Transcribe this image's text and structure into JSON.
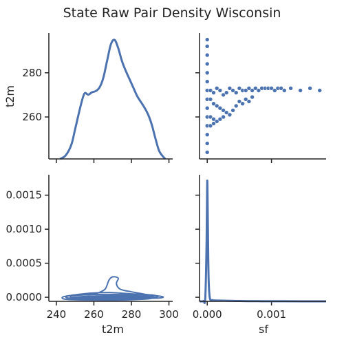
{
  "title": "State Raw Pair Density Wisconsin",
  "accent_color": "#4c72b0",
  "chart_data": [
    {
      "panel": "t2m-vs-t2m",
      "type": "line",
      "kind": "kde",
      "xlabel": "",
      "ylabel": "t2m",
      "xlim": [
        236,
        302
      ],
      "ylim": [
        241,
        298
      ],
      "y_ticks": [
        "260",
        "280"
      ],
      "x_ticks": [],
      "x": [
        242,
        245,
        248,
        250,
        253,
        255,
        257,
        259,
        261,
        263,
        265,
        267,
        269,
        271,
        273,
        275,
        277,
        279,
        281,
        283,
        285,
        287,
        289,
        291,
        293,
        295,
        298
      ],
      "values": [
        0.0,
        0.03,
        0.12,
        0.25,
        0.45,
        0.55,
        0.54,
        0.56,
        0.57,
        0.6,
        0.68,
        0.82,
        0.96,
        1.0,
        0.93,
        0.82,
        0.74,
        0.67,
        0.6,
        0.53,
        0.48,
        0.43,
        0.37,
        0.28,
        0.16,
        0.06,
        0.0
      ]
    },
    {
      "panel": "t2m-vs-sf",
      "type": "scatter",
      "xlabel": "",
      "ylabel": "",
      "xlim": [
        -0.00012,
        0.00185
      ],
      "ylim": [
        241,
        298
      ],
      "x_ticks": [],
      "y_ticks": [],
      "points": [
        [
          0,
          295
        ],
        [
          0,
          292
        ],
        [
          0,
          288
        ],
        [
          0,
          284
        ],
        [
          0,
          280
        ],
        [
          0,
          276
        ],
        [
          0,
          272
        ],
        [
          0,
          268
        ],
        [
          0,
          264
        ],
        [
          0,
          260
        ],
        [
          0,
          256
        ],
        [
          0,
          252
        ],
        [
          0,
          248
        ],
        [
          0,
          244
        ],
        [
          5e-05,
          272
        ],
        [
          0.0001,
          271
        ],
        [
          0.00015,
          273
        ],
        [
          0.0002,
          272
        ],
        [
          0.00025,
          270
        ],
        [
          0.0003,
          271
        ],
        [
          0.00035,
          273
        ],
        [
          0.0004,
          272
        ],
        [
          0.00045,
          271
        ],
        [
          0.0005,
          273
        ],
        [
          0.00055,
          272
        ],
        [
          0.0006,
          272
        ],
        [
          0.00065,
          273
        ],
        [
          0.0007,
          272
        ],
        [
          0.00075,
          273
        ],
        [
          0.0008,
          272
        ],
        [
          0.00085,
          273
        ],
        [
          0.0009,
          273
        ],
        [
          0.00095,
          273
        ],
        [
          0.001,
          273
        ],
        [
          0.00105,
          272
        ],
        [
          0.0011,
          273
        ],
        [
          0.00115,
          273
        ],
        [
          0.0012,
          272
        ],
        [
          0.0013,
          273
        ],
        [
          0.00145,
          272
        ],
        [
          0.0016,
          273
        ],
        [
          0.00175,
          272
        ],
        [
          5e-05,
          268
        ],
        [
          0.0001,
          266
        ],
        [
          0.00015,
          265
        ],
        [
          0.0002,
          264
        ],
        [
          0.00025,
          263
        ],
        [
          0.0003,
          262
        ],
        [
          0.00035,
          261
        ],
        [
          0.0004,
          263
        ],
        [
          0.00045,
          265
        ],
        [
          0.0005,
          267
        ],
        [
          0.00055,
          266
        ],
        [
          0.0006,
          268
        ],
        [
          0.00065,
          267
        ],
        [
          0.0007,
          269
        ],
        [
          5e-05,
          260
        ],
        [
          0.0001,
          259
        ],
        [
          0.00015,
          258
        ],
        [
          0.0002,
          259
        ],
        [
          0.00025,
          260
        ],
        [
          5e-05,
          256
        ],
        [
          0.0001,
          257
        ]
      ]
    },
    {
      "panel": "sf-vs-t2m",
      "type": "line",
      "kind": "kde-contour",
      "xlabel": "t2m",
      "ylabel": "",
      "xlim": [
        236,
        302
      ],
      "ylim": [
        -6e-05,
        0.0018
      ],
      "x_ticks": [
        "240",
        "260",
        "280",
        "300"
      ],
      "y_ticks": [
        "0.0000",
        "0.0005",
        "0.0010",
        "0.0015"
      ],
      "contours": [
        [
          [
            262,
            6e-05
          ],
          [
            266,
            0.00012
          ],
          [
            268,
            0.00025
          ],
          [
            270,
            0.0003
          ],
          [
            273,
            0.00028
          ],
          [
            272,
            0.0002
          ],
          [
            274,
            0.00012
          ],
          [
            280,
            8e-05
          ],
          [
            286,
            5e-05
          ],
          [
            291,
            2e-05
          ],
          [
            290,
            -2e-05
          ],
          [
            275,
            -4e-05
          ],
          [
            260,
            -4e-05
          ],
          [
            245,
            -3e-05
          ],
          [
            244,
            1e-05
          ],
          [
            252,
            4e-05
          ],
          [
            262,
            6e-05
          ]
        ],
        [
          [
            248,
            3e-05
          ],
          [
            258,
            6e-05
          ],
          [
            268,
            7e-05
          ],
          [
            280,
            5e-05
          ],
          [
            292,
            3e-05
          ],
          [
            293,
            0.0
          ],
          [
            280,
            -3e-05
          ],
          [
            264,
            -3e-05
          ],
          [
            249,
            -2e-05
          ],
          [
            248,
            3e-05
          ]
        ],
        [
          [
            246,
            2e-05
          ],
          [
            260,
            4e-05
          ],
          [
            275,
            4e-05
          ],
          [
            294,
            2e-05
          ],
          [
            295,
            -1e-05
          ],
          [
            275,
            -2e-05
          ],
          [
            258,
            -2e-05
          ],
          [
            246,
            -1e-05
          ],
          [
            246,
            2e-05
          ]
        ],
        [
          [
            248,
            0.0
          ],
          [
            262,
            2e-05
          ],
          [
            280,
            2e-05
          ],
          [
            293,
            0.0
          ],
          [
            280,
            -1e-05
          ],
          [
            262,
            -1e-05
          ],
          [
            248,
            0.0
          ]
        ],
        [
          [
            252,
            0.0
          ],
          [
            270,
            1e-05
          ],
          [
            288,
            0.0
          ],
          [
            270,
            -1e-05
          ],
          [
            252,
            0.0
          ]
        ],
        [
          [
            258,
            0.0
          ],
          [
            272,
            5e-06
          ],
          [
            284,
            0.0
          ],
          [
            272,
            -5e-06
          ],
          [
            258,
            0.0
          ]
        ]
      ]
    },
    {
      "panel": "sf-vs-sf",
      "type": "line",
      "kind": "kde",
      "xlabel": "sf",
      "ylabel": "",
      "xlim": [
        -0.00012,
        0.00185
      ],
      "ylim": [
        0,
        1.05
      ],
      "x_ticks": [
        "0.000",
        "0.001"
      ],
      "y_ticks": [],
      "x": [
        -0.00012,
        -6e-05,
        -3e-05,
        -1e-05,
        0.0,
        1e-05,
        2e-05,
        4e-05,
        8e-05,
        0.00015,
        0.0003,
        0.0005,
        0.0008,
        0.0012,
        0.00185
      ],
      "values": [
        0.0,
        0.002,
        0.03,
        0.5,
        1.0,
        0.65,
        0.22,
        0.03,
        0.01,
        0.007,
        0.005,
        0.003,
        0.001,
        0.0005,
        0.0
      ]
    }
  ]
}
